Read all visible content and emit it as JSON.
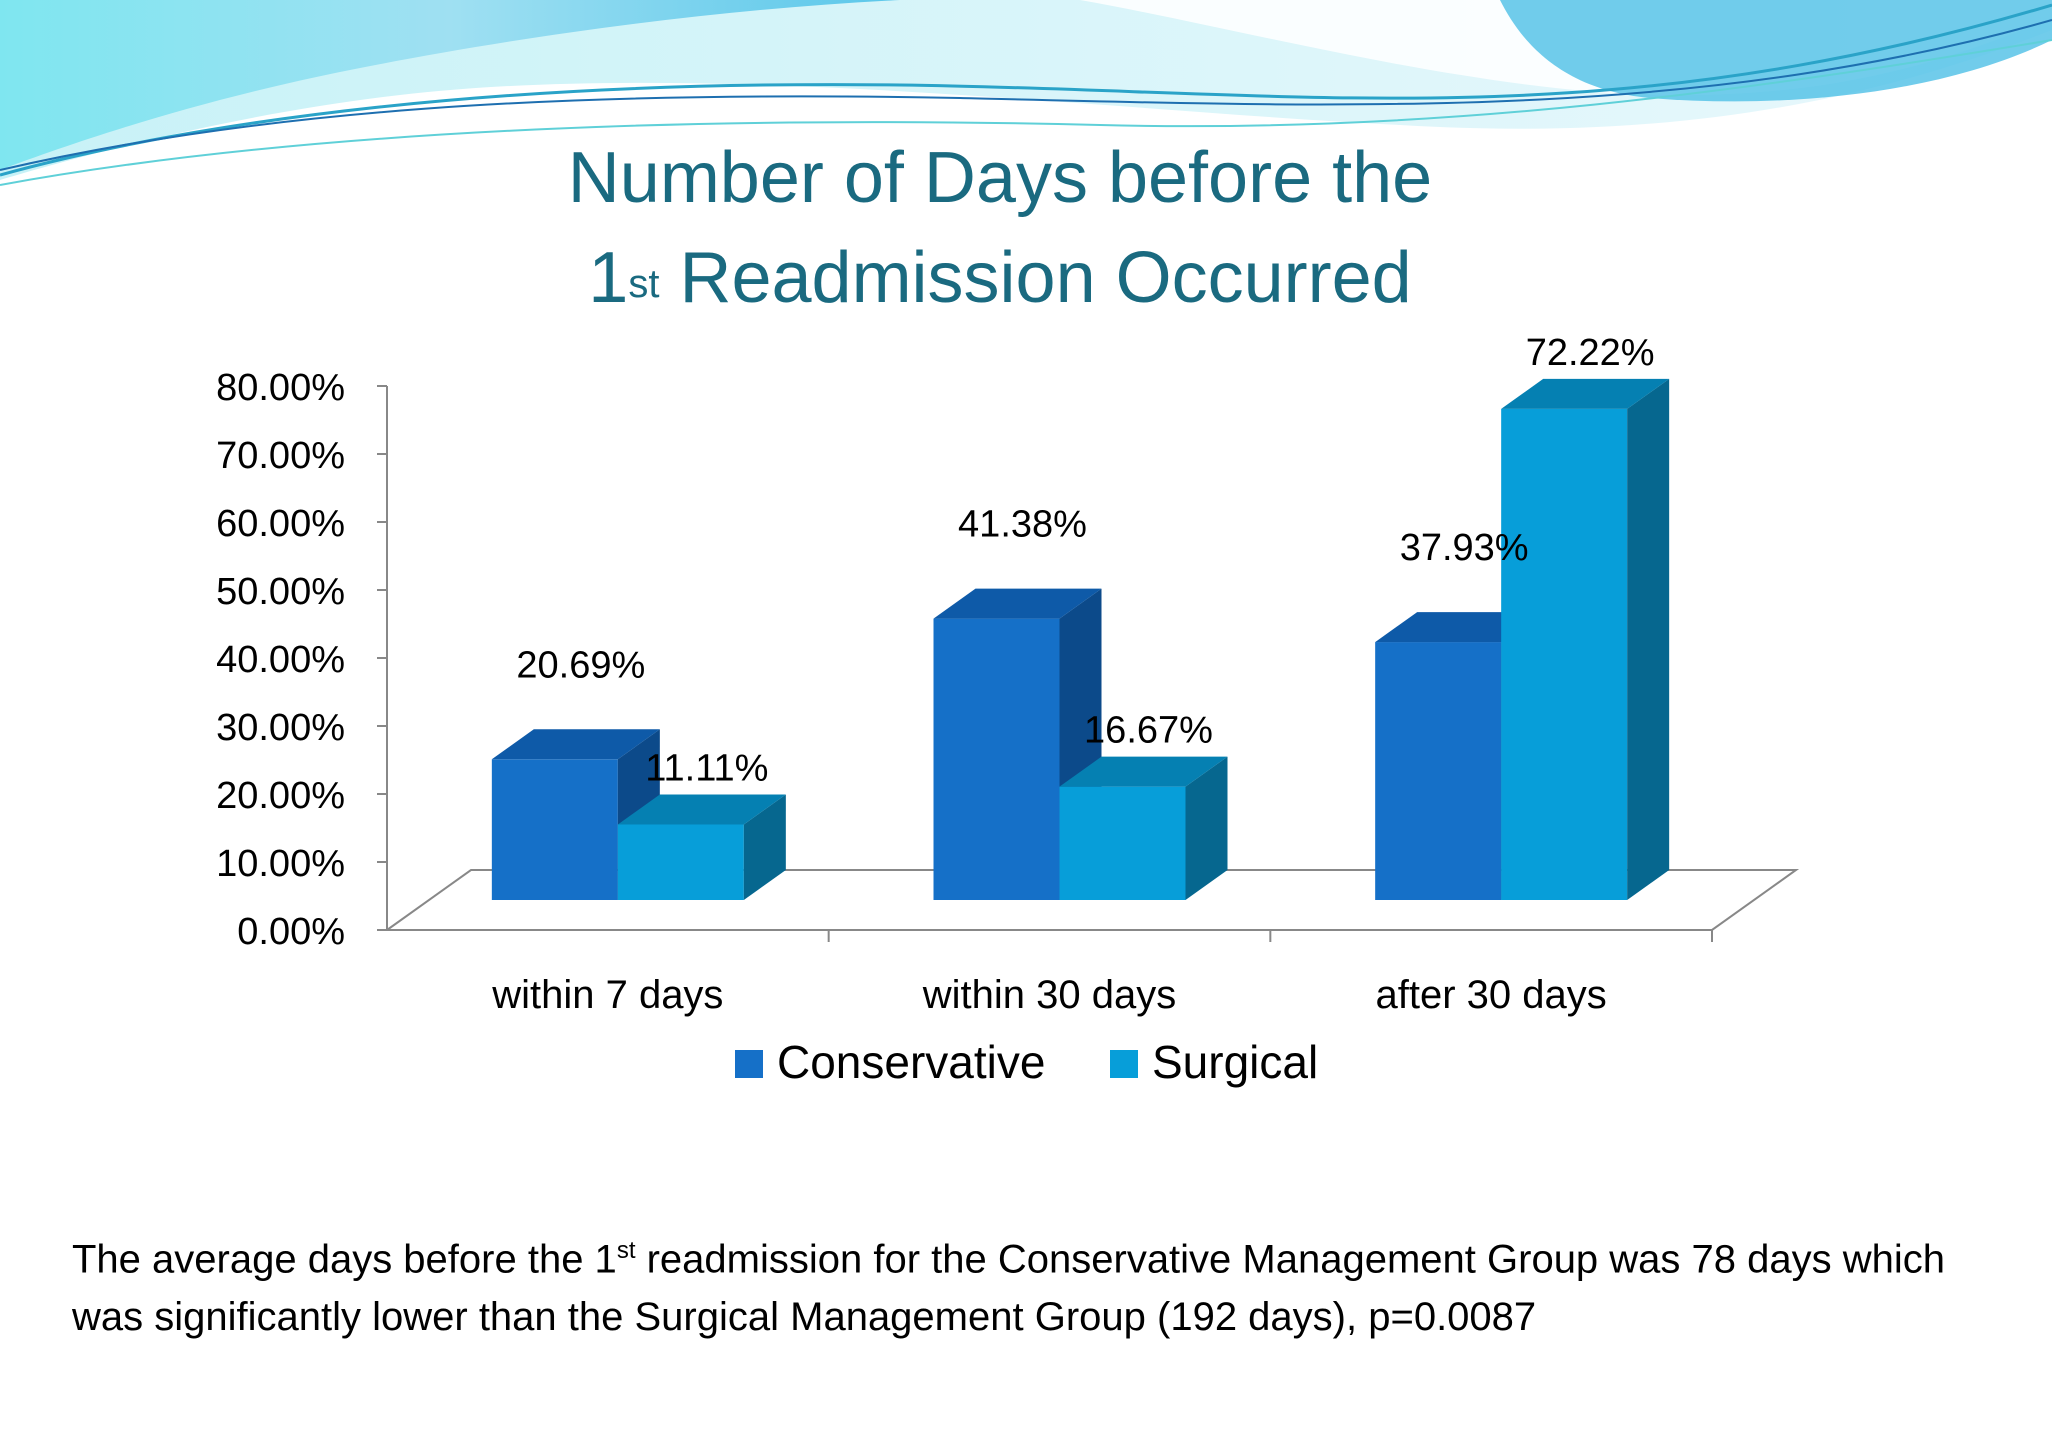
{
  "slide": {
    "title_line_1": "Number of Days before the",
    "title_line_2_prefix": "1",
    "title_line_2_sup": "st",
    "title_line_2_rest": " Readmission Occurred",
    "caption_part_1": "The average days before the 1",
    "caption_sup": "st",
    "caption_part_2": " readmission for the Conservative Management Group was 78 days which was significantly lower than the Surgical Management Group (192 days), p=0.0087"
  },
  "colors": {
    "conservative_front": "#1570c8",
    "conservative_side": "#0c4a8a",
    "conservative_top": "#0e5aa8",
    "surgical_front": "#079ed9",
    "surgical_side": "#06678f",
    "surgical_top": "#0580b2",
    "title": "#1a6a80",
    "axis": "#888888"
  },
  "chart_data": {
    "type": "bar",
    "categories": [
      "within 7 days",
      "within 30 days",
      "after 30 days"
    ],
    "series": [
      {
        "name": "Conservative",
        "values": [
          20.69,
          41.38,
          37.93
        ],
        "labels": [
          "20.69%",
          "41.38%",
          "37.93%"
        ]
      },
      {
        "name": "Surgical",
        "values": [
          11.11,
          16.67,
          72.22
        ],
        "labels": [
          "11.11%",
          "16.67%",
          "72.22%"
        ]
      }
    ],
    "ylim": [
      0,
      80
    ],
    "yticks": [
      "0.00%",
      "10.00%",
      "20.00%",
      "30.00%",
      "40.00%",
      "50.00%",
      "60.00%",
      "70.00%",
      "80.00%"
    ],
    "legend": "bottom",
    "title": "Number of Days before the 1st Readmission Occurred"
  }
}
